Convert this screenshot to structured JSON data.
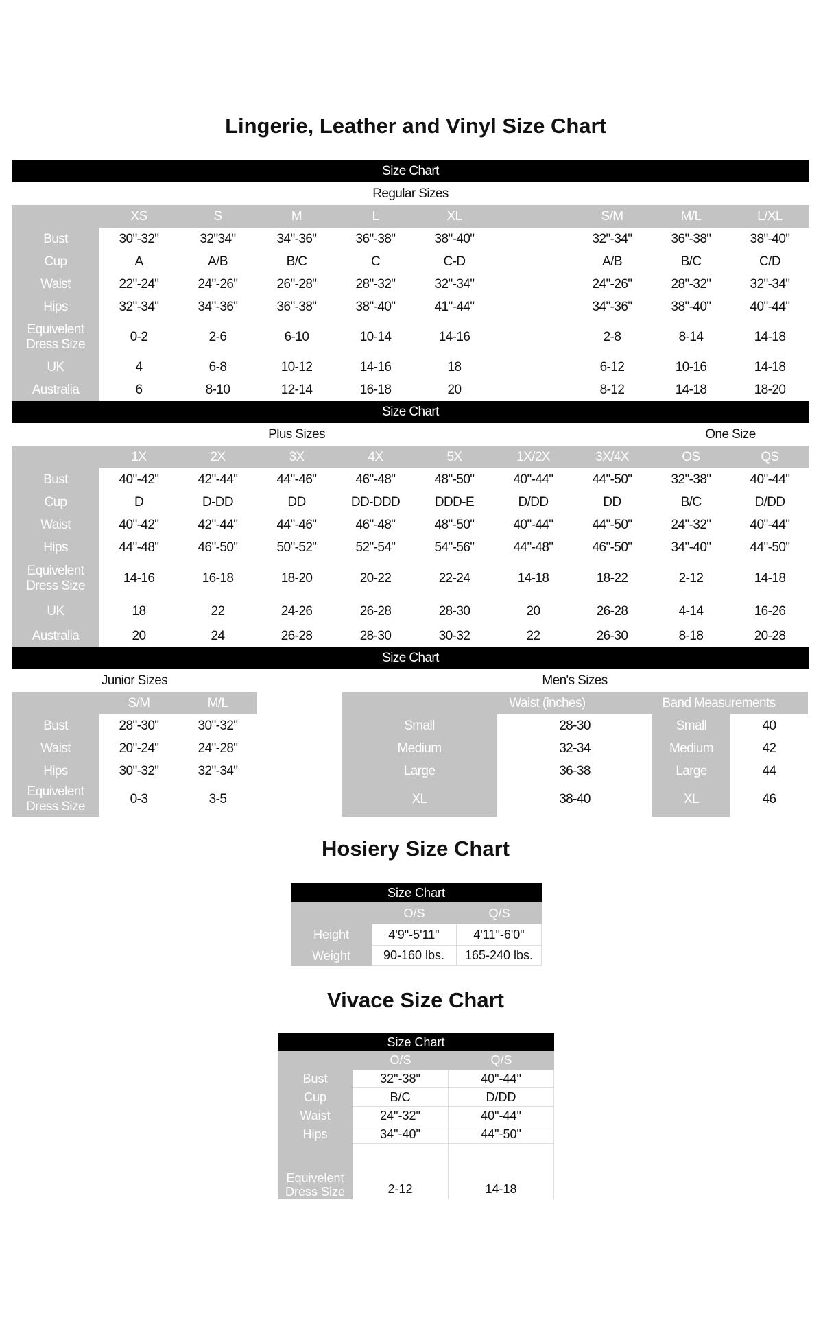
{
  "titles": {
    "main": "Lingerie, Leather and Vinyl Size Chart",
    "hosiery": "Hosiery Size Chart",
    "vivace": "Vivace Size Chart"
  },
  "colors": {
    "bar": "#000000",
    "label_bg": "#c3c3c3",
    "label_text": "#ffffff"
  },
  "regular": {
    "bar": "Size Chart",
    "subtitle": "Regular Sizes",
    "sizes": [
      "XS",
      "S",
      "M",
      "L",
      "XL",
      "",
      "S/M",
      "M/L",
      "L/XL"
    ],
    "rows": [
      {
        "label": "Bust",
        "values": [
          "30\"-32\"",
          "32\"34\"",
          "34\"-36\"",
          "36\"-38\"",
          "38\"-40\"",
          "",
          "32\"-34\"",
          "36\"-38\"",
          "38\"-40\""
        ]
      },
      {
        "label": "Cup",
        "values": [
          "A",
          "A/B",
          "B/C",
          "C",
          "C-D",
          "",
          "A/B",
          "B/C",
          "C/D"
        ]
      },
      {
        "label": "Waist",
        "values": [
          "22\"-24\"",
          "24\"-26\"",
          "26\"-28\"",
          "28\"-32\"",
          "32\"-34\"",
          "",
          "24\"-26\"",
          "28\"-32\"",
          "32\"-34\""
        ]
      },
      {
        "label": "Hips",
        "values": [
          "32\"-34\"",
          "34\"-36\"",
          "36\"-38\"",
          "38\"-40\"",
          "41\"-44\"",
          "",
          "34\"-36\"",
          "38\"-40\"",
          "40\"-44\""
        ]
      },
      {
        "label": "Equivelent\nDress Size",
        "values": [
          "0-2",
          "2-6",
          "6-10",
          "10-14",
          "14-16",
          "",
          "2-8",
          "8-14",
          "14-18"
        ]
      },
      {
        "label": "UK",
        "values": [
          "4",
          "6-8",
          "10-12",
          "14-16",
          "18",
          "",
          "6-12",
          "10-16",
          "14-18"
        ]
      },
      {
        "label": "Australia",
        "values": [
          "6",
          "8-10",
          "12-14",
          "16-18",
          "20",
          "",
          "8-12",
          "14-18",
          "18-20"
        ]
      }
    ]
  },
  "plus": {
    "bar": "Size Chart",
    "subtitle": "Plus Sizes",
    "one_size_subtitle": "One Size",
    "sizes": [
      "1X",
      "2X",
      "3X",
      "4X",
      "5X",
      "1X/2X",
      "3X/4X",
      "OS",
      "QS"
    ],
    "rows": [
      {
        "label": "Bust",
        "values": [
          "40\"-42\"",
          "42\"-44\"",
          "44\"-46\"",
          "46\"-48\"",
          "48\"-50\"",
          "40\"-44\"",
          "44\"-50\"",
          "32\"-38\"",
          "40\"-44\""
        ]
      },
      {
        "label": "Cup",
        "values": [
          "D",
          "D-DD",
          "DD",
          "DD-DDD",
          "DDD-E",
          "D/DD",
          "DD",
          "B/C",
          "D/DD"
        ]
      },
      {
        "label": "Waist",
        "values": [
          "40\"-42\"",
          "42\"-44\"",
          "44\"-46\"",
          "46\"-48\"",
          "48\"-50\"",
          "40\"-44\"",
          "44\"-50\"",
          "24\"-32\"",
          "40\"-44\""
        ]
      },
      {
        "label": "Hips",
        "values": [
          "44\"-48\"",
          "46\"-50\"",
          "50\"-52\"",
          "52\"-54\"",
          "54\"-56\"",
          "44\"-48\"",
          "46\"-50\"",
          "34\"-40\"",
          "44\"-50\""
        ]
      },
      {
        "label": "Equivelent\nDress Size",
        "values": [
          "14-16",
          "16-18",
          "18-20",
          "20-22",
          "22-24",
          "14-18",
          "18-22",
          "2-12",
          "14-18"
        ]
      },
      {
        "label": "UK",
        "values": [
          "18",
          "22",
          "24-26",
          "26-28",
          "28-30",
          "20",
          "26-28",
          "4-14",
          "16-26"
        ]
      },
      {
        "label": "Australia",
        "values": [
          "20",
          "24",
          "26-28",
          "28-30",
          "30-32",
          "22",
          "26-30",
          "8-18",
          "20-28"
        ]
      }
    ]
  },
  "section3": {
    "bar": "Size Chart"
  },
  "junior": {
    "subtitle": "Junior Sizes",
    "sizes": [
      "S/M",
      "M/L"
    ],
    "rows": [
      {
        "label": "Bust",
        "values": [
          "28\"-30\"",
          "30\"-32\""
        ]
      },
      {
        "label": "Waist",
        "values": [
          "20\"-24\"",
          "24\"-28\""
        ]
      },
      {
        "label": "Hips",
        "values": [
          "30\"-32\"",
          "32\"-34\""
        ]
      },
      {
        "label": "Equivelent\nDress Size",
        "values": [
          "0-3",
          "3-5"
        ]
      }
    ]
  },
  "mens": {
    "subtitle": "Men's Sizes",
    "waist_header": "Waist (inches)",
    "band_header": "Band Measurements",
    "rows": [
      {
        "size": "Small",
        "waist": "28-30",
        "band_size": "Small",
        "band": "40"
      },
      {
        "size": "Medium",
        "waist": "32-34",
        "band_size": "Medium",
        "band": "42"
      },
      {
        "size": "Large",
        "waist": "36-38",
        "band_size": "Large",
        "band": "44"
      },
      {
        "size": "XL",
        "waist": "38-40",
        "band_size": "XL",
        "band": "46"
      }
    ]
  },
  "hosiery": {
    "bar": "Size Chart",
    "sizes": [
      "O/S",
      "Q/S"
    ],
    "rows": [
      {
        "label": "Height",
        "values": [
          "4'9\"-5'11\"",
          "4'11\"-6'0\""
        ]
      },
      {
        "label": "Weight",
        "values": [
          "90-160 lbs.",
          "165-240 lbs."
        ]
      }
    ]
  },
  "vivace": {
    "bar": "Size Chart",
    "sizes": [
      "O/S",
      "Q/S"
    ],
    "rows": [
      {
        "label": "Bust",
        "values": [
          "32\"-38\"",
          "40\"-44\""
        ]
      },
      {
        "label": "Cup",
        "values": [
          "B/C",
          "D/DD"
        ]
      },
      {
        "label": "Waist",
        "values": [
          "24\"-32\"",
          "40\"-44\""
        ]
      },
      {
        "label": "Hips",
        "values": [
          "34\"-40\"",
          "44\"-50\""
        ]
      },
      {
        "label": "Equivelent\nDress Size",
        "values": [
          "2-12",
          "14-18"
        ]
      }
    ]
  }
}
